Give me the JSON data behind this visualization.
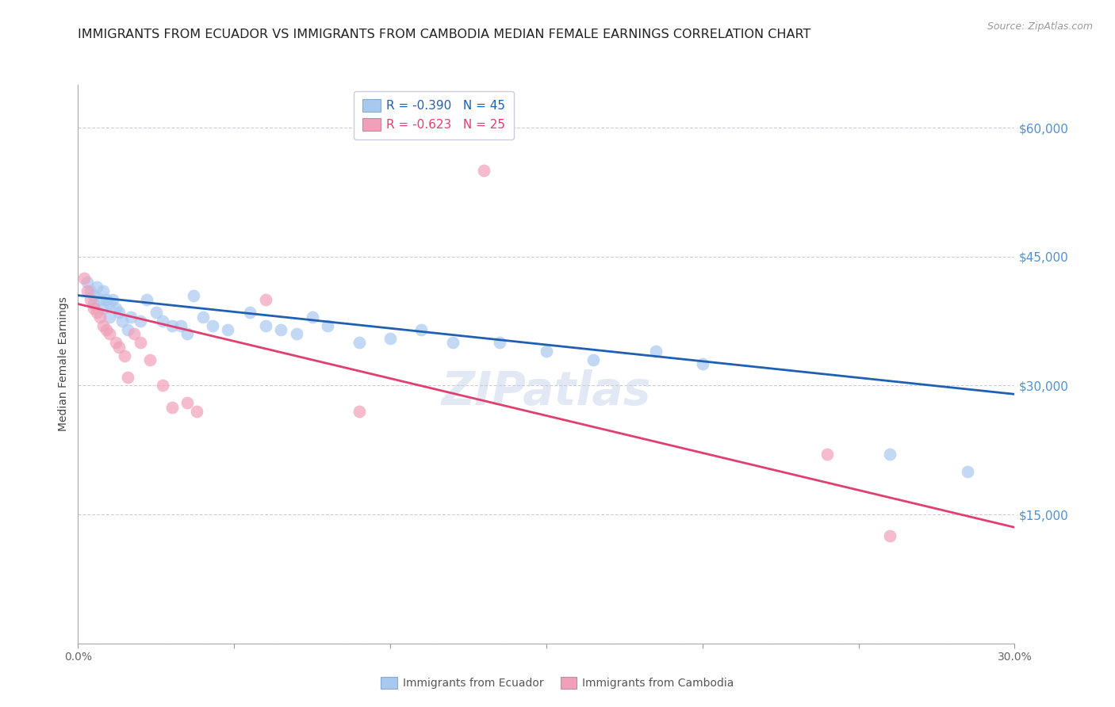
{
  "title": "IMMIGRANTS FROM ECUADOR VS IMMIGRANTS FROM CAMBODIA MEDIAN FEMALE EARNINGS CORRELATION CHART",
  "source": "Source: ZipAtlas.com",
  "ylabel": "Median Female Earnings",
  "right_ytick_labels": [
    "",
    "$15,000",
    "$30,000",
    "$45,000",
    "$60,000"
  ],
  "right_yticks": [
    0,
    15000,
    30000,
    45000,
    60000
  ],
  "legend_r1": "R = -0.390   N = 45",
  "legend_r2": "R = -0.623   N = 25",
  "ecuador_color": "#a8c8f0",
  "ecuador_line_color": "#2060b0",
  "cambodia_color": "#f0a0b8",
  "cambodia_line_color": "#e04070",
  "watermark": "ZIPatlas",
  "ecuador_points": [
    [
      0.003,
      42000
    ],
    [
      0.004,
      41000
    ],
    [
      0.005,
      40500
    ],
    [
      0.005,
      39500
    ],
    [
      0.006,
      41500
    ],
    [
      0.007,
      40000
    ],
    [
      0.008,
      41000
    ],
    [
      0.008,
      39000
    ],
    [
      0.009,
      40000
    ],
    [
      0.01,
      39500
    ],
    [
      0.01,
      38000
    ],
    [
      0.011,
      40000
    ],
    [
      0.012,
      39000
    ],
    [
      0.013,
      38500
    ],
    [
      0.014,
      37500
    ],
    [
      0.016,
      36500
    ],
    [
      0.017,
      38000
    ],
    [
      0.02,
      37500
    ],
    [
      0.022,
      40000
    ],
    [
      0.025,
      38500
    ],
    [
      0.027,
      37500
    ],
    [
      0.03,
      37000
    ],
    [
      0.033,
      37000
    ],
    [
      0.035,
      36000
    ],
    [
      0.037,
      40500
    ],
    [
      0.04,
      38000
    ],
    [
      0.043,
      37000
    ],
    [
      0.048,
      36500
    ],
    [
      0.055,
      38500
    ],
    [
      0.06,
      37000
    ],
    [
      0.065,
      36500
    ],
    [
      0.07,
      36000
    ],
    [
      0.075,
      38000
    ],
    [
      0.08,
      37000
    ],
    [
      0.09,
      35000
    ],
    [
      0.1,
      35500
    ],
    [
      0.11,
      36500
    ],
    [
      0.12,
      35000
    ],
    [
      0.135,
      35000
    ],
    [
      0.15,
      34000
    ],
    [
      0.165,
      33000
    ],
    [
      0.185,
      34000
    ],
    [
      0.2,
      32500
    ],
    [
      0.26,
      22000
    ],
    [
      0.285,
      20000
    ]
  ],
  "cambodia_points": [
    [
      0.002,
      42500
    ],
    [
      0.003,
      41000
    ],
    [
      0.004,
      40000
    ],
    [
      0.005,
      39000
    ],
    [
      0.006,
      38500
    ],
    [
      0.007,
      38000
    ],
    [
      0.008,
      37000
    ],
    [
      0.009,
      36500
    ],
    [
      0.01,
      36000
    ],
    [
      0.012,
      35000
    ],
    [
      0.013,
      34500
    ],
    [
      0.015,
      33500
    ],
    [
      0.016,
      31000
    ],
    [
      0.018,
      36000
    ],
    [
      0.02,
      35000
    ],
    [
      0.023,
      33000
    ],
    [
      0.027,
      30000
    ],
    [
      0.03,
      27500
    ],
    [
      0.035,
      28000
    ],
    [
      0.038,
      27000
    ],
    [
      0.06,
      40000
    ],
    [
      0.09,
      27000
    ],
    [
      0.13,
      55000
    ],
    [
      0.24,
      22000
    ],
    [
      0.26,
      12500
    ]
  ],
  "ecuador_trend_x": [
    0.0,
    0.3
  ],
  "ecuador_trend_y": [
    40500,
    29000
  ],
  "cambodia_trend_x": [
    0.0,
    0.3
  ],
  "cambodia_trend_y": [
    39500,
    13500
  ],
  "xmin": 0.0,
  "xmax": 0.3,
  "ymin": 0,
  "ymax": 65000,
  "background_color": "#ffffff",
  "grid_color": "#ccccdd",
  "title_fontsize": 11.5,
  "source_fontsize": 9,
  "axis_label_fontsize": 10,
  "tick_fontsize": 10,
  "watermark_fontsize": 42,
  "watermark_color": "#c0d0e8",
  "watermark_alpha": 0.45,
  "legend_label1": "Immigrants from Ecuador",
  "legend_label2": "Immigrants from Cambodia"
}
